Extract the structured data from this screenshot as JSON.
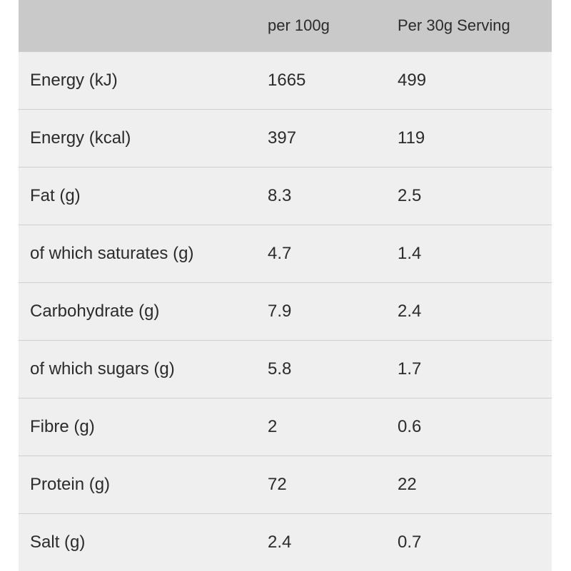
{
  "header": {
    "col1": "",
    "col2": "per 100g",
    "col3": "Per 30g Serving"
  },
  "rows": [
    {
      "nutrient": "Energy (kJ)",
      "per100": "1665",
      "perServing": "499"
    },
    {
      "nutrient": "Energy (kcal)",
      "per100": "397",
      "perServing": "119"
    },
    {
      "nutrient": "Fat (g)",
      "per100": "8.3",
      "perServing": "2.5"
    },
    {
      "nutrient": "of which saturates (g)",
      "per100": "4.7",
      "perServing": "1.4"
    },
    {
      "nutrient": "Carbohydrate (g)",
      "per100": "7.9",
      "perServing": "2.4"
    },
    {
      "nutrient": "of which sugars (g)",
      "per100": "5.8",
      "perServing": "1.7"
    },
    {
      "nutrient": "Fibre (g)",
      "per100": "2",
      "perServing": "0.6"
    },
    {
      "nutrient": "Protein (g)",
      "per100": "72",
      "perServing": "22"
    },
    {
      "nutrient": "Salt (g)",
      "per100": "2.4",
      "perServing": "0.7"
    }
  ]
}
